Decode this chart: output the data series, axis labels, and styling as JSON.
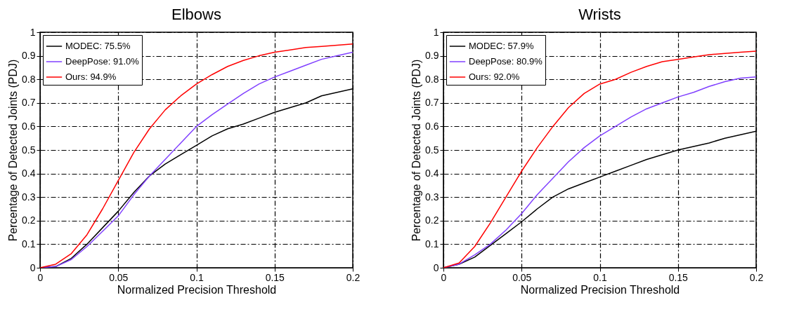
{
  "chart_data": [
    {
      "type": "line",
      "title": "Elbows",
      "xlabel": "Normalized Precision Threshold",
      "ylabel": "Percentage of Detected Joints (PDJ)",
      "x": [
        0,
        0.01,
        0.02,
        0.03,
        0.04,
        0.05,
        0.06,
        0.07,
        0.08,
        0.09,
        0.1,
        0.11,
        0.12,
        0.13,
        0.14,
        0.15,
        0.16,
        0.17,
        0.18,
        0.19,
        0.2
      ],
      "series": [
        {
          "name": "MODEC: 75.5%",
          "color": "#000000",
          "values": [
            0,
            0.005,
            0.04,
            0.1,
            0.17,
            0.24,
            0.32,
            0.39,
            0.44,
            0.48,
            0.52,
            0.56,
            0.59,
            0.61,
            0.635,
            0.66,
            0.68,
            0.7,
            0.73,
            0.745,
            0.76
          ]
        },
        {
          "name": "DeepPose: 91.0%",
          "color": "#8040ff",
          "values": [
            0,
            0.005,
            0.035,
            0.09,
            0.155,
            0.22,
            0.31,
            0.39,
            0.46,
            0.53,
            0.6,
            0.65,
            0.695,
            0.74,
            0.78,
            0.81,
            0.835,
            0.86,
            0.885,
            0.9,
            0.915
          ]
        },
        {
          "name": "Ours: 94.9%",
          "color": "#ff0000",
          "values": [
            0,
            0.015,
            0.06,
            0.14,
            0.25,
            0.37,
            0.49,
            0.59,
            0.67,
            0.73,
            0.78,
            0.82,
            0.855,
            0.88,
            0.9,
            0.915,
            0.925,
            0.935,
            0.94,
            0.945,
            0.95
          ]
        }
      ],
      "xlim": [
        0,
        0.2
      ],
      "xticks": [
        0,
        0.05,
        0.1,
        0.15,
        0.2
      ],
      "ylim": [
        0,
        1
      ],
      "yticks": [
        0,
        0.1,
        0.2,
        0.3,
        0.4,
        0.5,
        0.6,
        0.7,
        0.8,
        0.9,
        1
      ],
      "grid": true,
      "legend": "top left",
      "line_style": "solid"
    },
    {
      "type": "line",
      "title": "Wrists",
      "xlabel": "Normalized Precision Threshold",
      "ylabel": "Percentage of Detected Joints (PDJ)",
      "x": [
        0,
        0.01,
        0.02,
        0.03,
        0.04,
        0.05,
        0.06,
        0.07,
        0.08,
        0.09,
        0.1,
        0.11,
        0.12,
        0.13,
        0.14,
        0.15,
        0.16,
        0.17,
        0.18,
        0.19,
        0.2
      ],
      "series": [
        {
          "name": "MODEC: 57.9%",
          "color": "#000000",
          "values": [
            0,
            0.015,
            0.045,
            0.095,
            0.145,
            0.195,
            0.25,
            0.3,
            0.335,
            0.36,
            0.385,
            0.41,
            0.435,
            0.46,
            0.48,
            0.5,
            0.515,
            0.53,
            0.55,
            0.565,
            0.58
          ]
        },
        {
          "name": "DeepPose: 80.9%",
          "color": "#8040ff",
          "values": [
            0,
            0.015,
            0.055,
            0.1,
            0.16,
            0.23,
            0.31,
            0.38,
            0.45,
            0.51,
            0.56,
            0.6,
            0.64,
            0.675,
            0.7,
            0.725,
            0.745,
            0.77,
            0.79,
            0.805,
            0.81
          ]
        },
        {
          "name": "Ours: 92.0%",
          "color": "#ff0000",
          "values": [
            0,
            0.02,
            0.09,
            0.19,
            0.3,
            0.41,
            0.51,
            0.6,
            0.68,
            0.74,
            0.78,
            0.8,
            0.83,
            0.855,
            0.875,
            0.885,
            0.895,
            0.905,
            0.91,
            0.915,
            0.92
          ]
        }
      ],
      "xlim": [
        0,
        0.2
      ],
      "xticks": [
        0,
        0.05,
        0.1,
        0.15,
        0.2
      ],
      "ylim": [
        0,
        1
      ],
      "yticks": [
        0,
        0.1,
        0.2,
        0.3,
        0.4,
        0.5,
        0.6,
        0.7,
        0.8,
        0.9,
        1
      ],
      "grid": true,
      "legend": "top left",
      "line_style": "solid"
    }
  ]
}
